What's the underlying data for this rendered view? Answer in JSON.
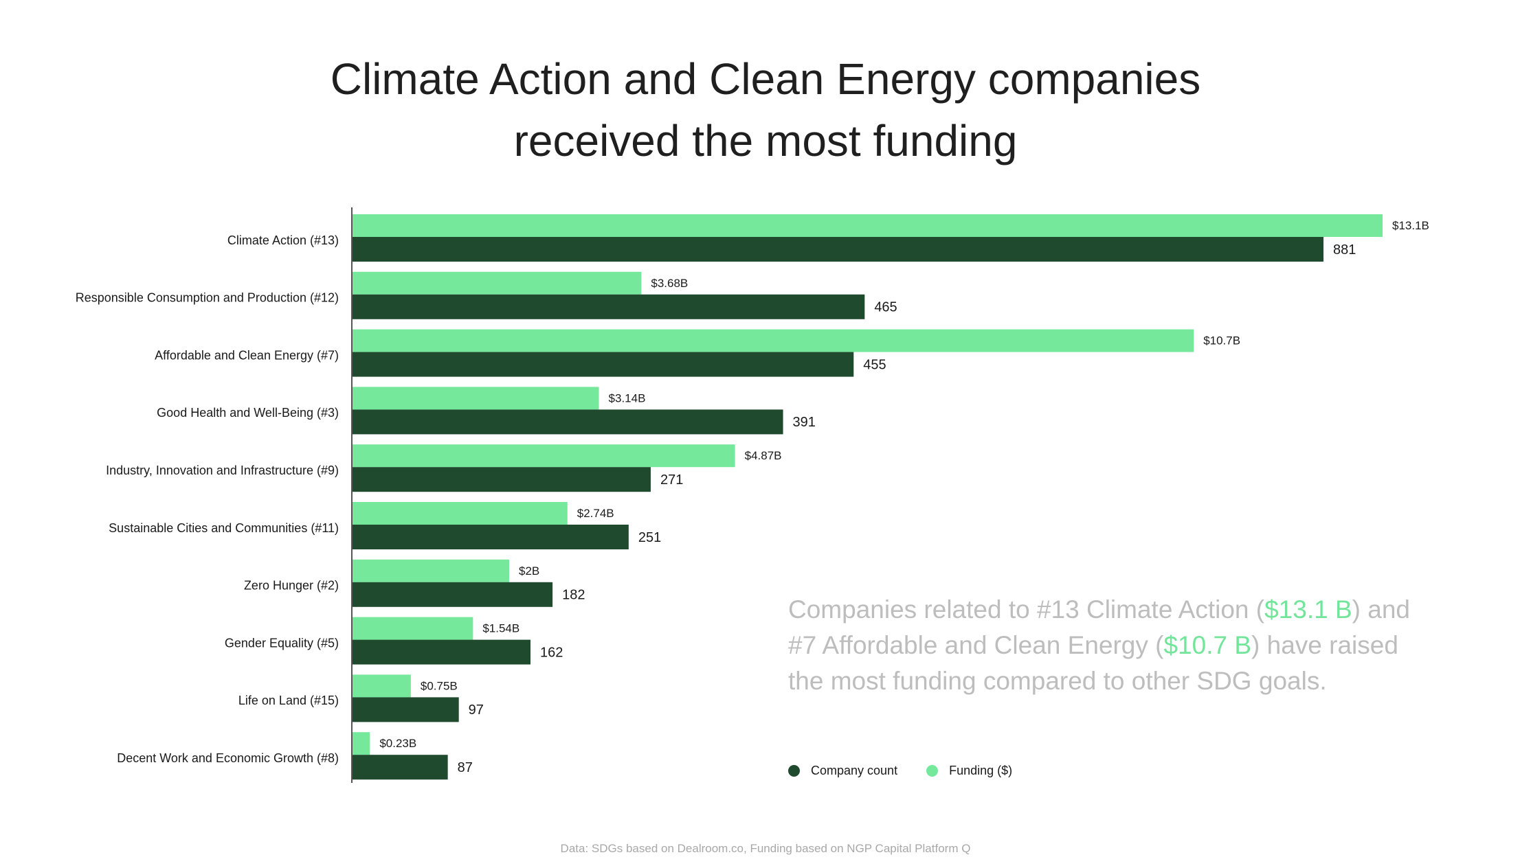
{
  "title_lines": [
    "Climate Action and Clean Energy companies",
    "received the most funding"
  ],
  "annotation": {
    "part1": "Companies related to  #13 Climate Action (",
    "hl1": "$13.1 B",
    "part2": ") and #7 Affordable and Clean Energy (",
    "hl2": "$10.7 B",
    "part3": ") have raised the most funding compared to other SDG goals."
  },
  "legend": {
    "count_label": "Company count",
    "funding_label": "Funding ($)"
  },
  "footer": "Data: SDGs based on Dealroom.co, Funding based on NGP Capital Platform Q",
  "colors": {
    "funding": "#75e89b",
    "count": "#1f4a2e",
    "axis": "#555555",
    "annotation_text": "#bdbdbd",
    "highlight": "#72e59b"
  },
  "chart_data": {
    "type": "bar",
    "orientation": "horizontal",
    "categories": [
      "Climate Action (#13)",
      "Responsible Consumption and Production (#12)",
      "Affordable and Clean Energy (#7)",
      "Good Health and Well-Being (#3)",
      "Industry, Innovation and Infrastructure (#9)",
      "Sustainable Cities and Communities (#11)",
      "Zero Hunger (#2)",
      "Gender Equality (#5)",
      "Life on Land (#15)",
      "Decent Work and Economic Growth (#8)"
    ],
    "series": [
      {
        "name": "Funding ($)",
        "unit": "B",
        "values": [
          13.1,
          3.68,
          10.7,
          3.14,
          4.87,
          2.74,
          2,
          1.54,
          0.75,
          0.23
        ],
        "labels": [
          "$13.1B",
          "$3.68B",
          "$10.7B",
          "$3.14B",
          "$4.87B",
          "$2.74B",
          "$2B",
          "$1.54B",
          "$0.75B",
          "$0.23B"
        ]
      },
      {
        "name": "Company count",
        "values": [
          881,
          465,
          455,
          391,
          271,
          251,
          182,
          162,
          97,
          87
        ],
        "labels": [
          "881",
          "465",
          "455",
          "391",
          "271",
          "251",
          "182",
          "162",
          "97",
          "87"
        ]
      }
    ],
    "legend_position": "bottom-right",
    "grid": false
  }
}
